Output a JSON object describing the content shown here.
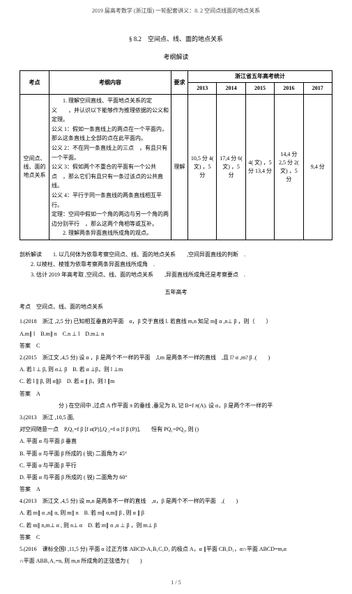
{
  "header": "2019 届高考数学 (浙江版) 一轮配套讲义：8. 2 空间点线面的地点关系",
  "sectionTitle": "§ 8.2　空间点、线、面的地点关系",
  "subTitle": "考纲解读",
  "table": {
    "col_kaodian": "考点",
    "col_content": "考纲内容",
    "col_req": "要求",
    "stat_header": "浙江省五年高考统计",
    "years": [
      "2013",
      "2014",
      "2015",
      "2016",
      "2017"
    ],
    "row_kaodian": "空间点、线、面的地点关系",
    "row_content": "　　1. 理解空间直线、平面地点关系的定义　　，并认识以下能够作为推理依据的公义和定理。\n公义 1：假如一条直线上的两点在一个平面内，那么这条直线上全部的点在此平面内。\n公义 2：不在同一条直线上的三点　，有且只有一个平面。\n公义 3：假如两个不重合的平面有一个公共点　，那么它们有且只有一条过该点的公共直线。\n公义 4：平行于同一条直线的两条直线相互平行。\n定理：空间中假如一个角的两边与另一个角的两边分别平行　，那么这两个角相等或互补。\n　　2. 理解两条异面直线所成角的观点。",
    "row_req": "理解",
    "cell_2013": "10,5 分 4( 文) ，5 分",
    "cell_2014": "17,4 分 6( 文) ，5 分",
    "cell_2015": "4( 文) ，5 分 13,4 分",
    "cell_2016": "14,4 分 2,5 分 2( 文) ，5 分",
    "cell_2017": "9,4 分"
  },
  "analysis": {
    "l1": "剖析解读　　1. 以几何体为依靠考察空间点、线、面的地点关系　　,空间异面直线的判断　.",
    "l2": "2. 以棱柱、棱锥为依靠考察两条异面直线所成角　.",
    "l3": "3. 估计 2019 年高考取 ,空间点、线、面的地点关系　　,异面直线所成角还是考察要点　."
  },
  "fiveyear": "五年高考",
  "kaodian_line": "考点　空间点、线、面的地点关系",
  "q1": {
    "stem": "1.(2018　浙江 ,2,5 分) 已知相互垂直的平面　α，β 交于直线 l. 若直线 m,n 知足 m∥ α ,n⊥ β ，则（　　）",
    "opts": "A.m∥ l　B.m∥ n　C.n ⊥ l　D.m⊥ n",
    "ans": "答案　C"
  },
  "q2": {
    "stem": "2.(2015　浙江文 ,4,5 分) 设 α ，β 是两个不一样的平面　,l,m 是两条不一样的直线　,且 l? α ,m? β .(　　)",
    "oA": "A. 若 l ⊥ β, 则 α⊥ β　B. 若 α ⊥β，则 l ⊥m",
    "oC": "C. 若 l ∥ β, 则 α∥β　D. 若 α ∥ β，则 l ∥m",
    "ans": "答案　A"
  },
  "q3": {
    "stem_a": "分 ) 在空间中 ,过点 A 作平面 π 的垂线 ,垂足为 B, 记 B=f π(A). 设 α，β 是两个不一样的平",
    "stem_b": "3.(2013　浙江 ,10,5 面,",
    "stem_c": "对空间随意一点　P,Q₁=f β [f α(P)],Q ₂=f α [f β (P)],　　恒有 PQ₁=PQ₂, 则 ()",
    "oA": "A. 平面 α 与平面 β 垂直",
    "oB": "B. 平面 α 与平面 β 所成的 ( 锐) 二面角为 45°",
    "oC": "C. 平面 α 与平面 β 平行",
    "oD": "D. 平面 α 与平面 β 所成的 ( 锐) 二面角为 60°",
    "ans": "答案　A"
  },
  "q4": {
    "stem": "4.(2013　浙江文 ,4,5 分) 设 m,n 是两条不一样的直线　,α，β 是两个不一样的平面　,(　　)",
    "oA": "A. 若 m∥ α ,n∥ α, 则 m∥ n　B. 若 m∥ α,m∥ β , 则 α ∥ β",
    "oC": "C. 若 m∥ n,m⊥ α , 则 n⊥ α　D. 若 m∥ α ,α ⊥ β ，则 m⊥ β",
    "ans": "答案　C"
  },
  "q5": {
    "stem": "5.(2016　课标全国Ⅰ ,11,5 分) 平面 α 过正方体 ABCD-A₁B₁C₁D₁ 的极点 A，α ∥平面 CB₁D₁，α∩平面 ABCD=m,α",
    "stem2": "∩平面 ABB₁A₁=n, 则 m,n 所成角的正弦值为 (　　)"
  },
  "pagenum": "1 / 5"
}
